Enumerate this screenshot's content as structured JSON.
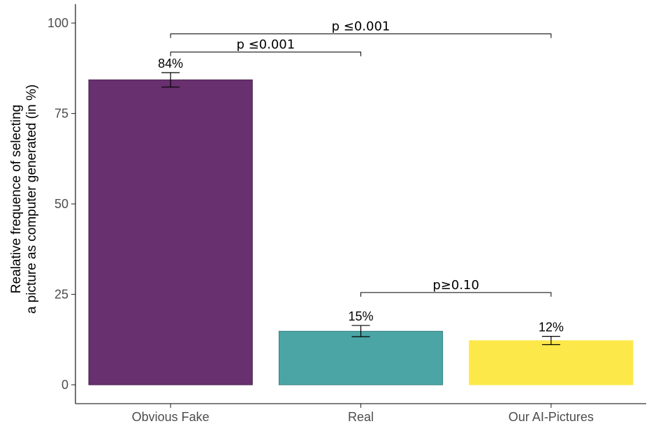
{
  "chart_data": {
    "type": "bar",
    "categories": [
      "Obvious Fake",
      "Real",
      "Our AI-Pictures"
    ],
    "values": [
      84.3,
      14.8,
      12.2
    ],
    "error_low": [
      82.3,
      13.3,
      11.1
    ],
    "error_high": [
      86.3,
      16.4,
      13.4
    ],
    "data_labels": [
      "84%",
      "15%",
      "12%"
    ],
    "colors": [
      "#68306f",
      "#4ba5a5",
      "#fde84a"
    ],
    "bar_stroke_colors": [
      "#4a1f4f",
      "#35807f",
      "#fde84a"
    ],
    "ylabel_lines": [
      "Realative frequence of selecting",
      "a picture as computer generated (in %)"
    ],
    "xlabel": "",
    "title": "",
    "ylim": [
      0,
      100
    ],
    "yticks": [
      0,
      25,
      50,
      75,
      100
    ],
    "grid": false,
    "legend": "none",
    "significance": [
      {
        "from": 0,
        "to": 1,
        "label": "p ≤0.001",
        "y": 92
      },
      {
        "from": 0,
        "to": 2,
        "label": "p ≤0.001",
        "y": 97
      },
      {
        "from": 1,
        "to": 2,
        "label": "p≥0.10",
        "y": 25.5
      }
    ]
  }
}
